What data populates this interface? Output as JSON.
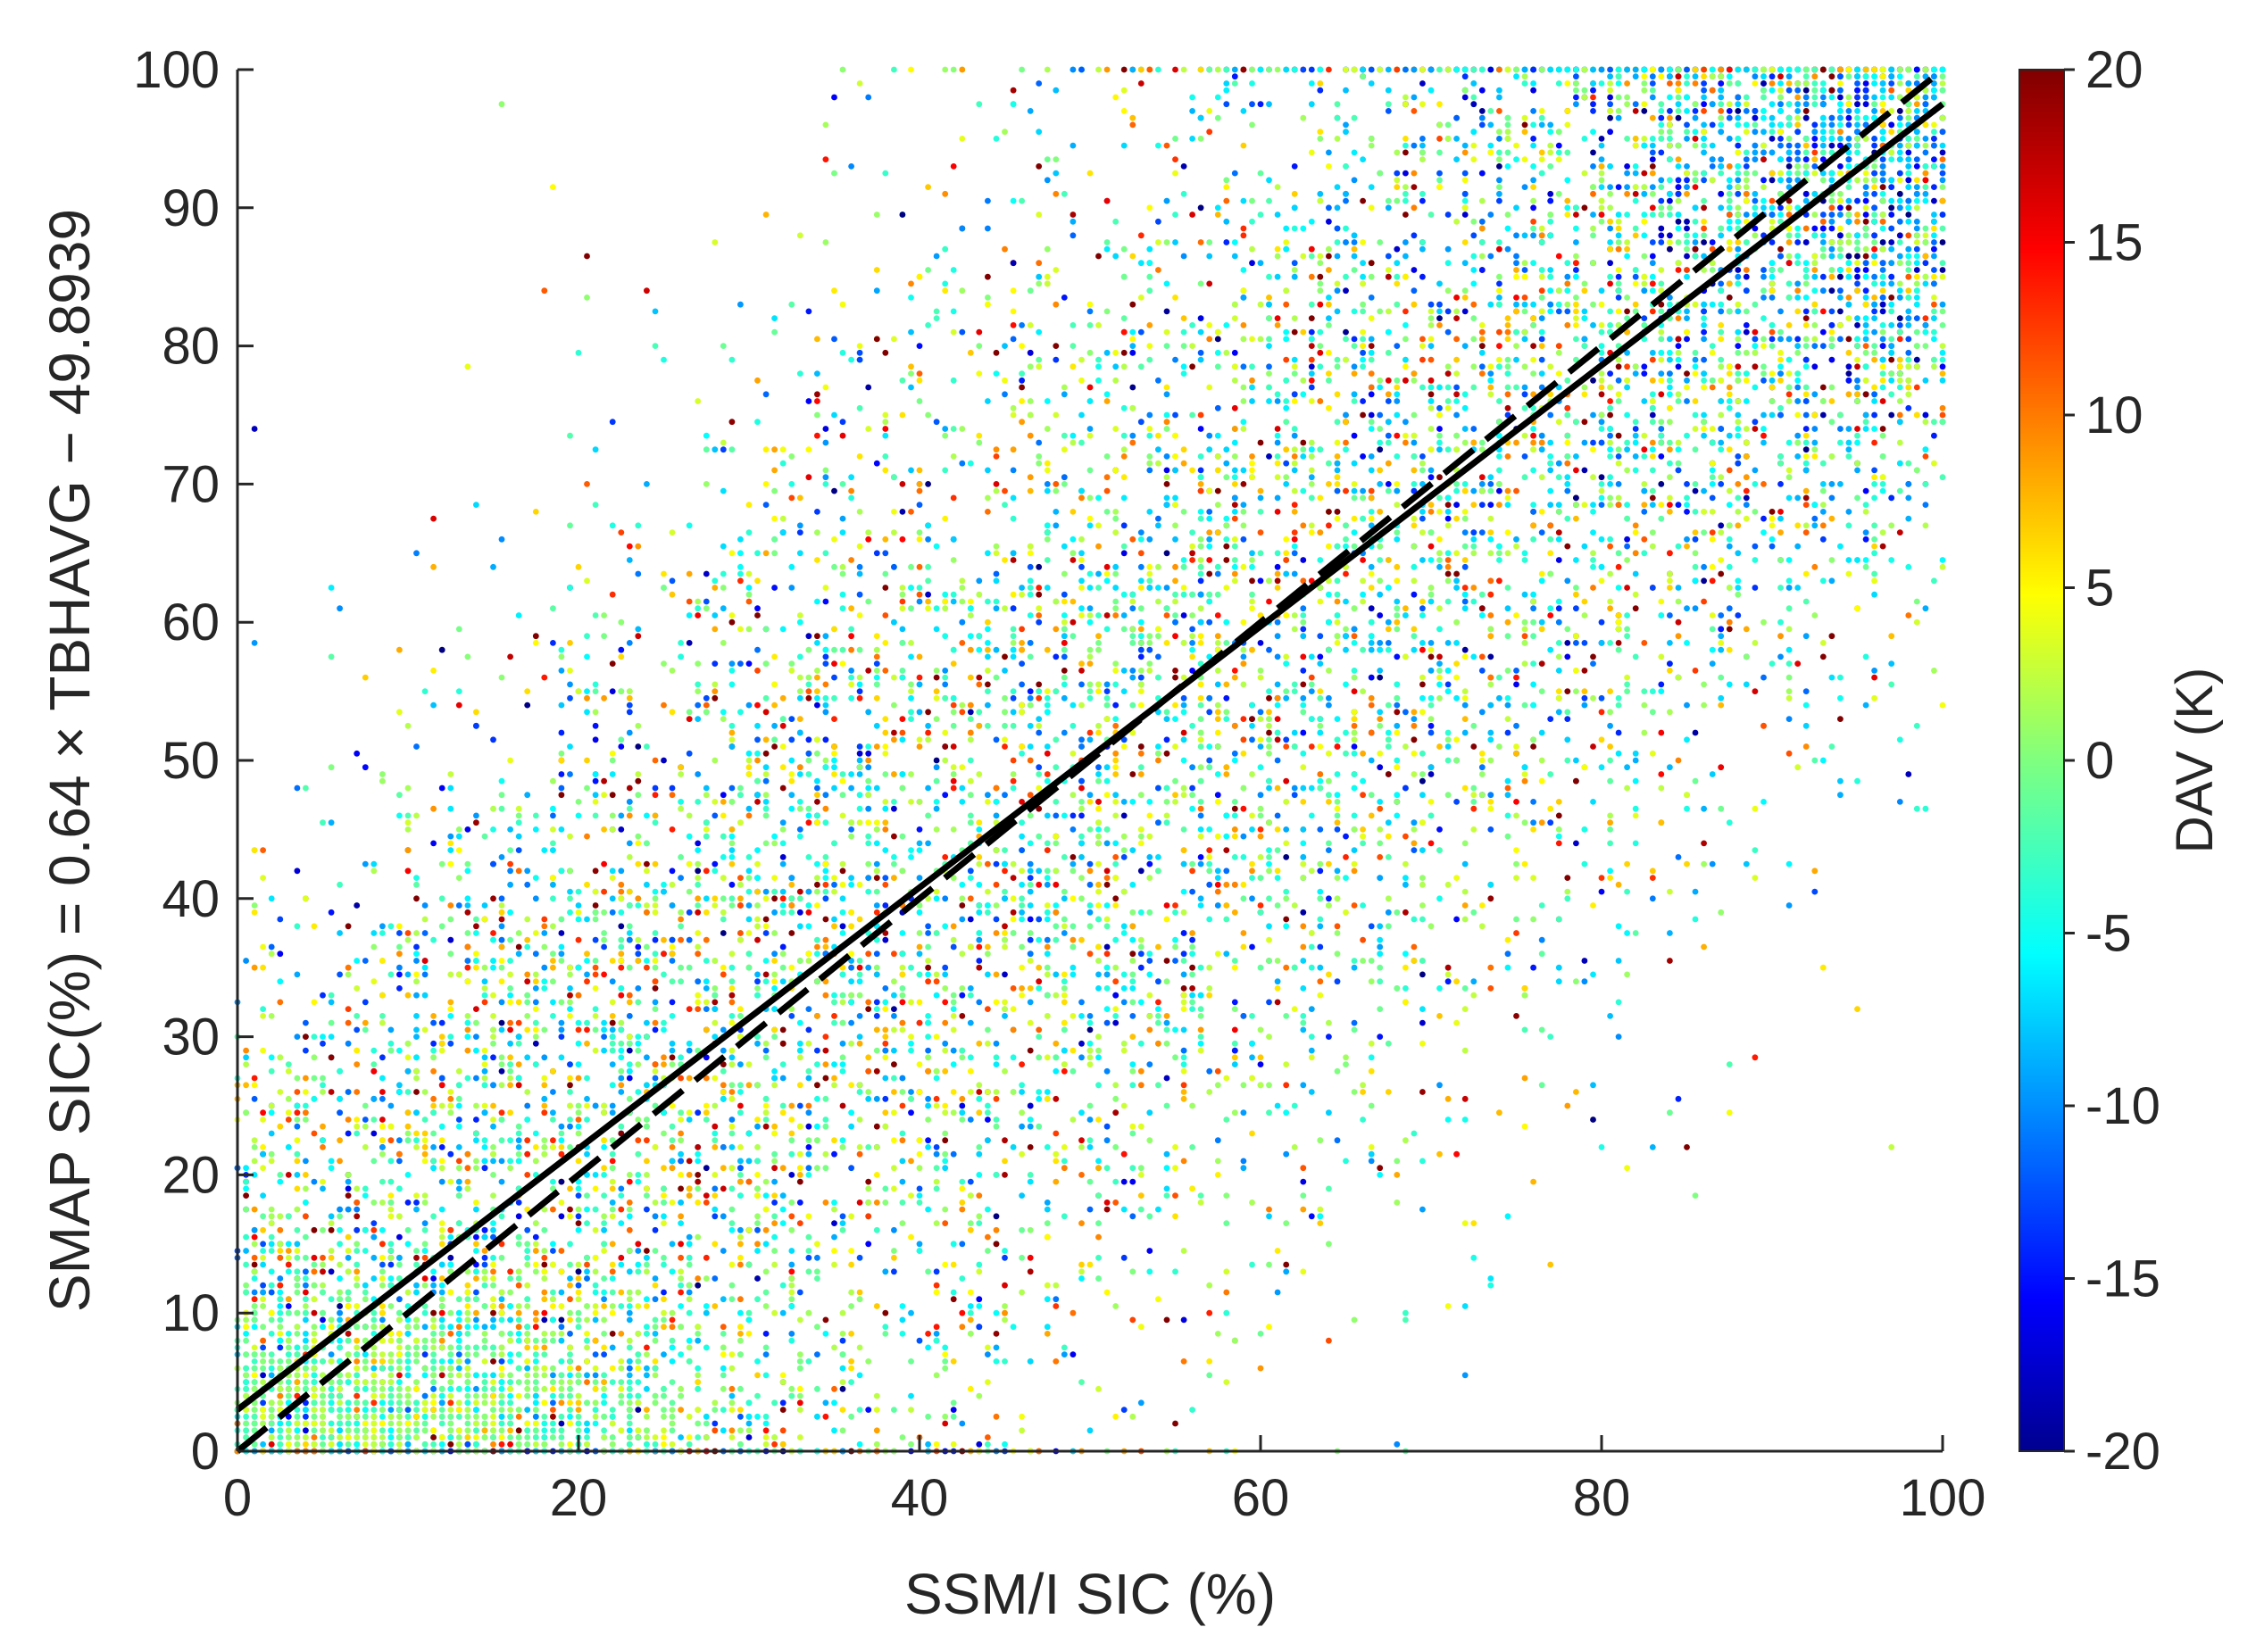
{
  "chart_data": {
    "type": "scatter",
    "xlabel": "SSM/I SIC (%)",
    "ylabel": "SMAP SIC(%) = 0.64 × TBHAVG − 49.8939",
    "xlim": [
      0,
      100
    ],
    "ylim": [
      0,
      100
    ],
    "xticks": [
      "0",
      "20",
      "40",
      "60",
      "80",
      "100"
    ],
    "yticks": [
      "0",
      "10",
      "20",
      "30",
      "40",
      "50",
      "60",
      "70",
      "80",
      "90",
      "100"
    ],
    "grid": false,
    "colorbar": {
      "label": "DAV (K)",
      "limits": [
        -20,
        20
      ],
      "ticks": [
        "-20",
        "-15",
        "-10",
        "-5",
        "0",
        "5",
        "10",
        "15",
        "20"
      ],
      "colormap": "jet"
    },
    "reference_lines": [
      {
        "style": "solid",
        "color": "#000000",
        "x": [
          0,
          100
        ],
        "y": [
          3,
          97.5
        ]
      },
      {
        "style": "dashed",
        "color": "#000000",
        "x": [
          0,
          100
        ],
        "y": [
          0,
          100
        ]
      }
    ],
    "point_density_note_free": true,
    "approx_points_rendered": 14000
  }
}
